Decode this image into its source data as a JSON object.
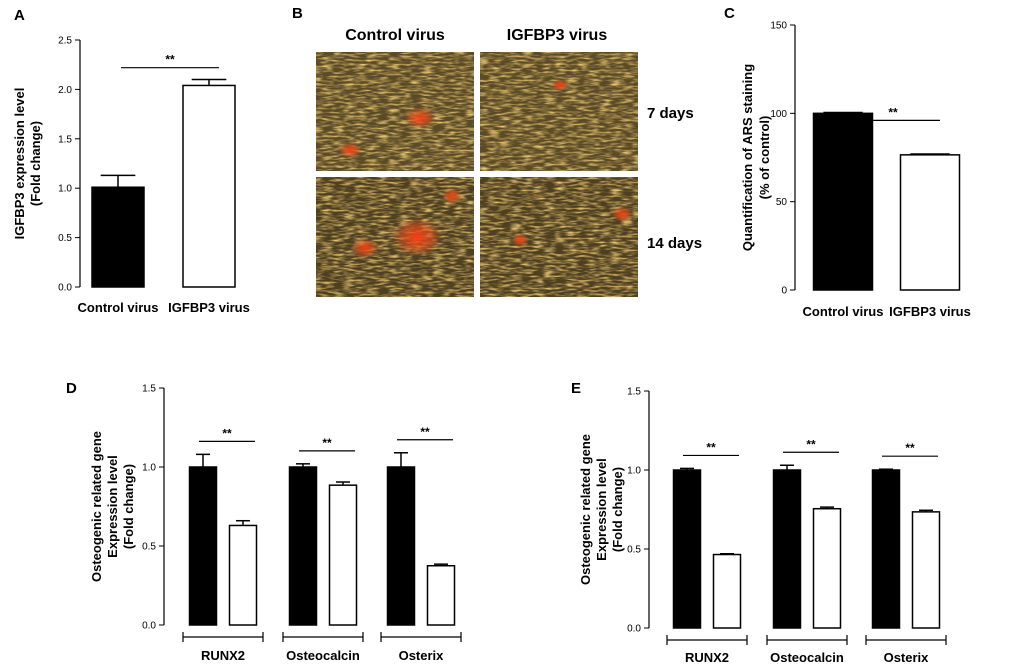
{
  "chart_data": [
    {
      "panel": "A",
      "type": "bar",
      "ylabel_lines": [
        "IGFBP3 expression level",
        "(Fold change)"
      ],
      "ylim": [
        0,
        2.5
      ],
      "yticks": [
        "0.0",
        "0.5",
        "1.0",
        "1.5",
        "2.0",
        "2.5"
      ],
      "categories": [
        "Control virus",
        "IGFBP3 virus"
      ],
      "values": [
        1.01,
        2.04
      ],
      "errors": [
        0.12,
        0.06
      ],
      "fills": [
        "#000000",
        "#ffffff"
      ],
      "significance": [
        {
          "from": 0,
          "to": 1,
          "label": "**"
        }
      ]
    },
    {
      "panel": "C",
      "type": "bar",
      "ylabel_lines": [
        "Quantification of ARS staining",
        "(% of control)"
      ],
      "ylim": [
        0,
        150
      ],
      "yticks": [
        "0",
        "50",
        "100",
        "150"
      ],
      "categories": [
        "Control virus",
        "IGFBP3 virus"
      ],
      "values": [
        100,
        76.5
      ],
      "errors": [
        0.5,
        0.5
      ],
      "fills": [
        "#000000",
        "#ffffff"
      ],
      "significance": [
        {
          "from": 0,
          "to": 1,
          "label": "**"
        }
      ]
    },
    {
      "panel": "D",
      "type": "bar",
      "ylabel_lines": [
        "Osteogenic related gene",
        "Expression level",
        "(Fold change)"
      ],
      "ylim": [
        0,
        1.5
      ],
      "yticks": [
        "0.0",
        "0.5",
        "1.0",
        "1.5"
      ],
      "groups": [
        "RUNX2",
        "Osteocalcin",
        "Osterix"
      ],
      "series": [
        {
          "fill": "#000000",
          "values": [
            1.0,
            1.0,
            1.0
          ],
          "errors": [
            0.08,
            0.02,
            0.09
          ]
        },
        {
          "fill": "#ffffff",
          "values": [
            0.63,
            0.885,
            0.375
          ],
          "errors": [
            0.03,
            0.02,
            0.01
          ]
        }
      ],
      "significance_label": "**"
    },
    {
      "panel": "E",
      "type": "bar",
      "ylabel_lines": [
        "Osteogenic related gene",
        "Expression level",
        "(Fold change)"
      ],
      "ylim": [
        0,
        1.5
      ],
      "yticks": [
        "0.0",
        "0.5",
        "1.0",
        "1.5"
      ],
      "groups": [
        "RUNX2",
        "Osteocalcin",
        "Osterix"
      ],
      "series": [
        {
          "fill": "#000000",
          "values": [
            1.0,
            1.0,
            1.0
          ],
          "errors": [
            0.01,
            0.03,
            0.005
          ]
        },
        {
          "fill": "#ffffff",
          "values": [
            0.465,
            0.755,
            0.735
          ],
          "errors": [
            0.005,
            0.01,
            0.01
          ]
        }
      ],
      "significance_label": "**"
    }
  ],
  "micrographs": {
    "panel": "B",
    "columns": [
      "Control virus",
      "IGFBP3 virus"
    ],
    "rows": [
      "7 days",
      "14 days"
    ],
    "stain_colors": {
      "background": "#5a4a26",
      "fiber": "#c8952e",
      "stain": "#e83a12"
    }
  }
}
